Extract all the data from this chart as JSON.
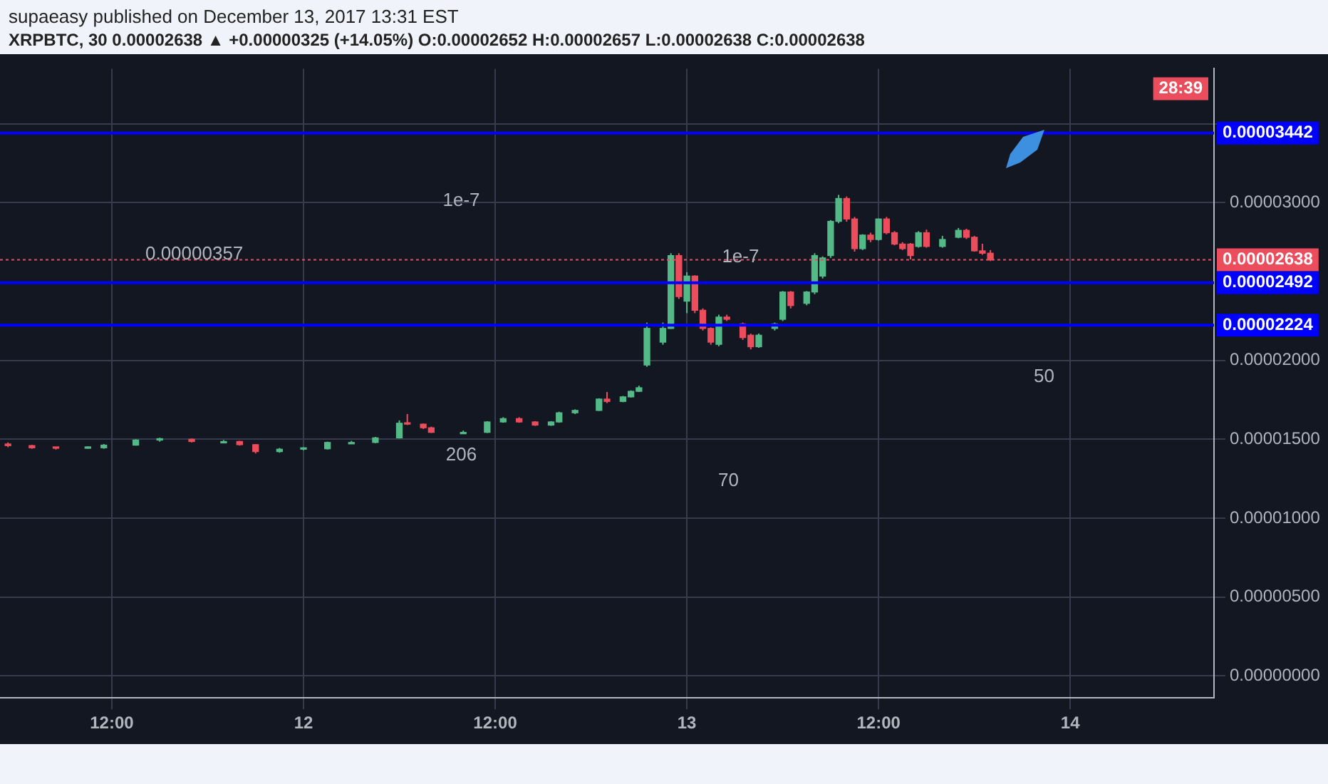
{
  "chart_data": {
    "type": "candlestick",
    "title": "supaeasy published on December 13, 2017 13:31 EST",
    "subtitle": "XRPBTC, 30  0.00002638 ▲ +0.00000325 (+14.05%) O:0.00002652 H:0.00002657 L:0.00002638 C:0.00002638",
    "x": [
      "2017-12-11T05:30",
      "2017-12-11T07:00",
      "2017-12-11T08:30",
      "2017-12-11T10:30",
      "2017-12-11T11:30",
      "2017-12-11T13:30",
      "2017-12-11T15:00",
      "2017-12-11T17:00",
      "2017-12-11T19:00",
      "2017-12-11T20:00",
      "2017-12-11T21:00",
      "2017-12-11T22:30",
      "2017-12-12T00:00",
      "2017-12-12T01:30",
      "2017-12-12T03:00",
      "2017-12-12T04:30",
      "2017-12-12T06:00",
      "2017-12-12T06:30",
      "2017-12-12T07:30",
      "2017-12-12T08:00",
      "2017-12-12T10:00",
      "2017-12-12T11:30",
      "2017-12-12T12:30",
      "2017-12-12T13:30",
      "2017-12-12T14:30",
      "2017-12-12T15:30",
      "2017-12-12T16:00",
      "2017-12-12T17:00",
      "2017-12-12T18:30",
      "2017-12-12T19:00",
      "2017-12-12T20:00",
      "2017-12-12T20:30",
      "2017-12-12T21:00",
      "2017-12-12T21:30",
      "2017-12-12T22:30",
      "2017-12-12T23:00",
      "2017-12-12T23:30",
      "2017-12-13T00:00",
      "2017-12-13T00:30",
      "2017-12-13T01:00",
      "2017-12-13T01:30",
      "2017-12-13T02:00",
      "2017-12-13T02:30",
      "2017-12-13T03:30",
      "2017-12-13T04:00",
      "2017-12-13T04:30",
      "2017-12-13T05:30",
      "2017-12-13T06:00",
      "2017-12-13T06:30",
      "2017-12-13T07:30",
      "2017-12-13T08:00",
      "2017-12-13T08:30",
      "2017-12-13T09:00",
      "2017-12-13T09:30",
      "2017-12-13T10:00",
      "2017-12-13T10:30",
      "2017-12-13T11:00",
      "2017-12-13T11:30",
      "2017-12-13T12:00",
      "2017-12-13T12:30",
      "2017-12-13T13:00",
      "2017-12-13T13:30",
      "2017-12-13T14:00",
      "2017-12-13T14:30",
      "2017-12-13T15:00",
      "2017-12-13T16:00",
      "2017-12-13T17:00",
      "2017-12-13T17:30",
      "2017-12-13T18:00",
      "2017-12-13T18:30",
      "2017-12-13T19:00"
    ],
    "ohlc": [
      [
        1.47e-05,
        1.48e-05,
        1.45e-05,
        1.46e-05
      ],
      [
        1.46e-05,
        1.465e-05,
        1.44e-05,
        1.446e-05
      ],
      [
        1.446e-05,
        1.45e-05,
        1.435e-05,
        1.443e-05
      ],
      [
        1.443e-05,
        1.455e-05,
        1.44e-05,
        1.446e-05
      ],
      [
        1.446e-05,
        1.47e-05,
        1.44e-05,
        1.463e-05
      ],
      [
        1.463e-05,
        1.5e-05,
        1.46e-05,
        1.495e-05
      ],
      [
        1.495e-05,
        1.51e-05,
        1.485e-05,
        1.5e-05
      ],
      [
        1.5e-05,
        1.505e-05,
        1.48e-05,
        1.486e-05
      ],
      [
        1.486e-05,
        1.495e-05,
        1.48e-05,
        1.486e-05
      ],
      [
        1.486e-05,
        1.49e-05,
        1.46e-05,
        1.466e-05
      ],
      [
        1.466e-05,
        1.47e-05,
        1.41e-05,
        1.422e-05
      ],
      [
        1.422e-05,
        1.445e-05,
        1.415e-05,
        1.437e-05
      ],
      [
        1.437e-05,
        1.45e-05,
        1.43e-05,
        1.44e-05
      ],
      [
        1.44e-05,
        1.485e-05,
        1.435e-05,
        1.48e-05
      ],
      [
        1.48e-05,
        1.49e-05,
        1.47e-05,
        1.48e-05
      ],
      [
        1.48e-05,
        1.515e-05,
        1.475e-05,
        1.509e-05
      ],
      [
        1.509e-05,
        1.62e-05,
        1.505e-05,
        1.602e-05
      ],
      [
        1.602e-05,
        1.66e-05,
        1.59e-05,
        1.596e-05
      ],
      [
        1.596e-05,
        1.6e-05,
        1.565e-05,
        1.573e-05
      ],
      [
        1.573e-05,
        1.58e-05,
        1.54e-05,
        1.544e-05
      ],
      [
        1.544e-05,
        1.555e-05,
        1.54e-05,
        1.544e-05
      ],
      [
        1.544e-05,
        1.615e-05,
        1.54e-05,
        1.61e-05
      ],
      [
        1.61e-05,
        1.64e-05,
        1.605e-05,
        1.631e-05
      ],
      [
        1.631e-05,
        1.64e-05,
        1.605e-05,
        1.61e-05
      ],
      [
        1.61e-05,
        1.615e-05,
        1.585e-05,
        1.59e-05
      ],
      [
        1.59e-05,
        1.615e-05,
        1.585e-05,
        1.61e-05
      ],
      [
        1.61e-05,
        1.675e-05,
        1.605e-05,
        1.668e-05
      ],
      [
        1.668e-05,
        1.69e-05,
        1.66e-05,
        1.683e-05
      ],
      [
        1.683e-05,
        1.76e-05,
        1.68e-05,
        1.755e-05
      ],
      [
        1.755e-05,
        1.8e-05,
        1.73e-05,
        1.74e-05
      ],
      [
        1.74e-05,
        1.775e-05,
        1.735e-05,
        1.769e-05
      ],
      [
        1.769e-05,
        1.81e-05,
        1.765e-05,
        1.804e-05
      ],
      [
        1.804e-05,
        1.84e-05,
        1.8e-05,
        1.827e-05
      ],
      [
        1.971e-05,
        2.24e-05,
        1.96e-05,
        2.203e-05
      ],
      [
        2.116e-05,
        2.24e-05,
        2.1e-05,
        2.203e-05
      ],
      [
        2.203e-05,
        2.68e-05,
        2.2e-05,
        2.665e-05
      ],
      [
        2.665e-05,
        2.68e-05,
        2.39e-05,
        2.405e-05
      ],
      [
        2.376e-05,
        2.56e-05,
        2.3e-05,
        2.535e-05
      ],
      [
        2.535e-05,
        2.54e-05,
        2.3e-05,
        2.318e-05
      ],
      [
        2.318e-05,
        2.33e-05,
        2.19e-05,
        2.203e-05
      ],
      [
        2.203e-05,
        2.21e-05,
        2.1e-05,
        2.116e-05
      ],
      [
        2.102e-05,
        2.29e-05,
        2.09e-05,
        2.275e-05
      ],
      [
        2.275e-05,
        2.29e-05,
        2.25e-05,
        2.261e-05
      ],
      [
        2.232e-05,
        2.24e-05,
        2.13e-05,
        2.145e-05
      ],
      [
        2.16e-05,
        2.17e-05,
        2.07e-05,
        2.087e-05
      ],
      [
        2.087e-05,
        2.17e-05,
        2.08e-05,
        2.16e-05
      ],
      [
        2.203e-05,
        2.24e-05,
        2.19e-05,
        2.232e-05
      ],
      [
        2.261e-05,
        2.44e-05,
        2.25e-05,
        2.434e-05
      ],
      [
        2.434e-05,
        2.44e-05,
        2.33e-05,
        2.348e-05
      ],
      [
        2.362e-05,
        2.44e-05,
        2.35e-05,
        2.434e-05
      ],
      [
        2.434e-05,
        2.68e-05,
        2.42e-05,
        2.665e-05
      ],
      [
        2.535e-05,
        2.66e-05,
        2.52e-05,
        2.65e-05
      ],
      [
        2.665e-05,
        2.89e-05,
        2.65e-05,
        2.882e-05
      ],
      [
        2.882e-05,
        3.05e-05,
        2.87e-05,
        3.027e-05
      ],
      [
        3.027e-05,
        3.04e-05,
        2.88e-05,
        2.897e-05
      ],
      [
        2.897e-05,
        2.91e-05,
        2.69e-05,
        2.709e-05
      ],
      [
        2.709e-05,
        2.8e-05,
        2.7e-05,
        2.795e-05
      ],
      [
        2.795e-05,
        2.81e-05,
        2.75e-05,
        2.767e-05
      ],
      [
        2.767e-05,
        2.9e-05,
        2.76e-05,
        2.897e-05
      ],
      [
        2.897e-05,
        2.91e-05,
        2.8e-05,
        2.81e-05
      ],
      [
        2.81e-05,
        2.82e-05,
        2.73e-05,
        2.738e-05
      ],
      [
        2.738e-05,
        2.75e-05,
        2.7e-05,
        2.709e-05
      ],
      [
        2.738e-05,
        2.745e-05,
        2.64e-05,
        2.665e-05
      ],
      [
        2.723e-05,
        2.82e-05,
        2.715e-05,
        2.81e-05
      ],
      [
        2.81e-05,
        2.83e-05,
        2.715e-05,
        2.723e-05
      ],
      [
        2.723e-05,
        2.79e-05,
        2.715e-05,
        2.767e-05
      ],
      [
        2.781e-05,
        2.84e-05,
        2.775e-05,
        2.825e-05
      ],
      [
        2.825e-05,
        2.835e-05,
        2.77e-05,
        2.781e-05
      ],
      [
        2.781e-05,
        2.79e-05,
        2.69e-05,
        2.695e-05
      ],
      [
        2.695e-05,
        2.74e-05,
        2.67e-05,
        2.68e-05
      ],
      [
        2.68e-05,
        2.7e-05,
        2.63e-05,
        2.638e-05
      ]
    ],
    "xlim": [
      "2017-12-11T05:00",
      "2017-12-14T09:00"
    ],
    "xticks": [
      {
        "value": "2017-12-11T12:00",
        "label": "12:00"
      },
      {
        "value": "2017-12-12T00:00",
        "label": "12"
      },
      {
        "value": "2017-12-12T12:00",
        "label": "12:00"
      },
      {
        "value": "2017-12-13T00:00",
        "label": "13"
      },
      {
        "value": "2017-12-13T12:00",
        "label": "12:00"
      },
      {
        "value": "2017-12-14T00:00",
        "label": "14"
      }
    ],
    "ylim": [
      -1.4e-06,
      3.85e-05
    ],
    "yticks": [
      {
        "value": 0,
        "label": "0.00000000"
      },
      {
        "value": 5e-06,
        "label": "0.00000500"
      },
      {
        "value": 1e-05,
        "label": "0.00001000"
      },
      {
        "value": 1.5e-05,
        "label": "0.00001500"
      },
      {
        "value": 2e-05,
        "label": "0.00002000"
      },
      {
        "value": 3e-05,
        "label": "0.00003000"
      },
      {
        "value": 3.5e-05,
        "label": null
      }
    ],
    "ref_lines": [
      {
        "axis": "y",
        "value": 3.442e-05,
        "label": "0.00003442",
        "color": "#0000ff",
        "line_style": "solid"
      },
      {
        "axis": "y",
        "value": 2.638e-05,
        "label": "0.00002638",
        "color": "#eb4d5c",
        "line_style": "dotted"
      },
      {
        "axis": "y",
        "value": 2.492e-05,
        "label": "0.00002492",
        "color": "#0000ff",
        "line_style": "solid"
      },
      {
        "axis": "y",
        "value": 2.224e-05,
        "label": "0.00002224",
        "color": "#0000ff",
        "line_style": "solid"
      }
    ],
    "annotations": [
      "0.00000357",
      "1e-7",
      "206",
      "1e-7",
      "70",
      "50",
      "28:39"
    ],
    "colors": [
      "#eb4d5c",
      "#eb4d5c",
      "#eb4d5c",
      "#53b987",
      "#53b987",
      "#53b987",
      "#53b987",
      "#eb4d5c",
      "#53b987",
      "#eb4d5c",
      "#eb4d5c",
      "#53b987",
      "#53b987",
      "#53b987",
      "#53b987",
      "#53b987",
      "#53b987",
      "#eb4d5c",
      "#eb4d5c",
      "#eb4d5c",
      "#53b987",
      "#53b987",
      "#53b987",
      "#eb4d5c",
      "#eb4d5c",
      "#53b987",
      "#53b987",
      "#53b987",
      "#53b987",
      "#eb4d5c",
      "#53b987",
      "#53b987",
      "#53b987",
      "#53b987",
      "#53b987",
      "#53b987",
      "#eb4d5c",
      "#53b987",
      "#eb4d5c",
      "#eb4d5c",
      "#eb4d5c",
      "#53b987",
      "#eb4d5c",
      "#eb4d5c",
      "#eb4d5c",
      "#53b987",
      "#53b987",
      "#53b987",
      "#eb4d5c",
      "#53b987",
      "#53b987",
      "#53b987",
      "#53b987",
      "#53b987",
      "#eb4d5c",
      "#eb4d5c",
      "#53b987",
      "#eb4d5c",
      "#53b987",
      "#eb4d5c",
      "#eb4d5c",
      "#eb4d5c",
      "#eb4d5c",
      "#53b987",
      "#eb4d5c",
      "#53b987",
      "#53b987",
      "#eb4d5c",
      "#eb4d5c",
      "#eb4d5c",
      "#eb4d5c"
    ],
    "grid": true,
    "legend": false
  }
}
